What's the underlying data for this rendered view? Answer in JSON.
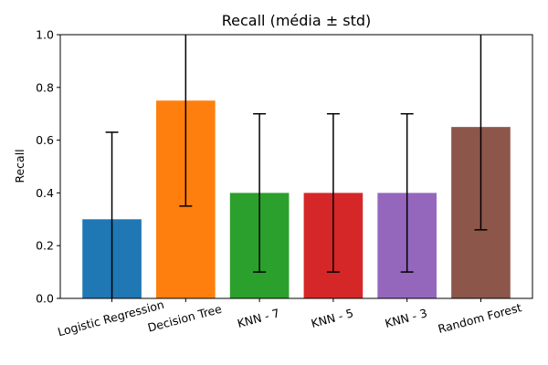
{
  "chart_data": {
    "type": "bar",
    "title": "Recall (média ± std)",
    "xlabel": "",
    "ylabel": "Recall",
    "ylim": [
      0,
      1.0
    ],
    "yticks": [
      "0.0",
      "0.2",
      "0.4",
      "0.6",
      "0.8",
      "1.0"
    ],
    "grid": false,
    "categories": [
      "Logistic Regression",
      "Decision Tree",
      "KNN - 7",
      "KNN - 5",
      "KNN - 3",
      "Random Forest"
    ],
    "values": [
      0.3,
      0.75,
      0.4,
      0.4,
      0.4,
      0.65
    ],
    "errors": [
      0.33,
      0.4,
      0.3,
      0.3,
      0.3,
      0.39
    ],
    "colors": [
      "#1f77b4",
      "#ff7f0e",
      "#2ca02c",
      "#d62728",
      "#9467bd",
      "#8c564b"
    ],
    "xtick_rotation": 15
  }
}
